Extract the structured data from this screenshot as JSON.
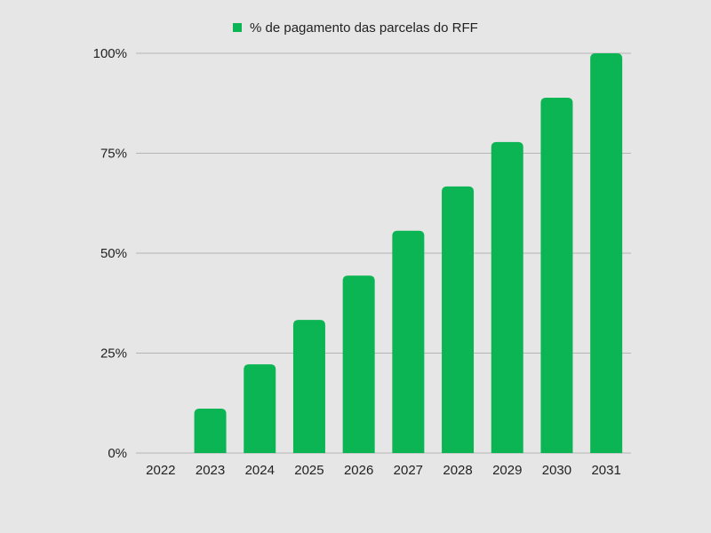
{
  "chart_data": {
    "type": "bar",
    "categories": [
      "2022",
      "2023",
      "2024",
      "2025",
      "2026",
      "2027",
      "2028",
      "2029",
      "2030",
      "2031"
    ],
    "series": [
      {
        "name": "% de pagamento das parcelas do RFF",
        "values": [
          0,
          11.1,
          22.2,
          33.3,
          44.4,
          55.6,
          66.7,
          77.8,
          88.9,
          100
        ]
      }
    ],
    "ylim": [
      0,
      100
    ],
    "yticks": [
      0,
      25,
      50,
      75,
      100
    ],
    "ytick_labels": [
      "0%",
      "25%",
      "50%",
      "75%",
      "100%"
    ],
    "title": "",
    "xlabel": "",
    "ylabel": "",
    "grid": "horizontal",
    "legend_position": "top-center",
    "bar_color": "#0cb554",
    "background_color": "#e6e6e6"
  }
}
